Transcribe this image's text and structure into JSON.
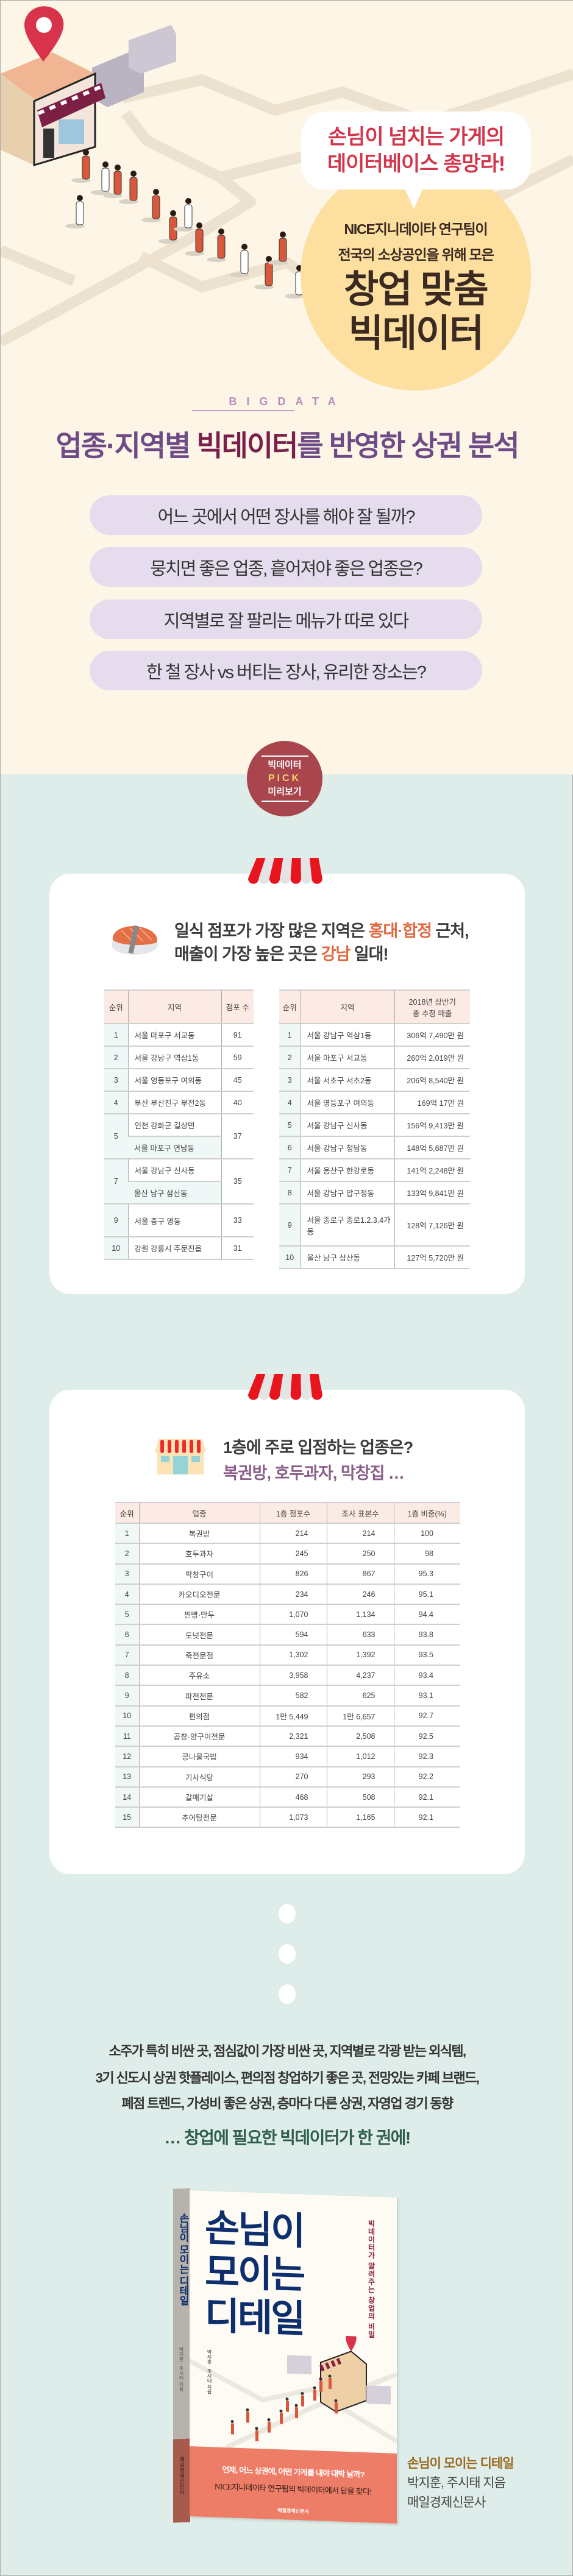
{
  "hero": {
    "bubble_lines": [
      "손님이 넘치는 가게의",
      "데이터베이스 총망라!"
    ],
    "circle_lines": [
      "NICE지니데이타 연구팀이",
      "전국의 소상공인을 위해 모은"
    ],
    "circle_big": [
      "창업 맞춤",
      "빅데이터"
    ],
    "accent_color": "#d3354a"
  },
  "intro": {
    "label": "BIGDATA",
    "title_pre": "업종·지역별 ",
    "title_hl": "빅데이터",
    "title_post": "를 반영한 상권 분석",
    "questions": [
      "어느 곳에서 어떤 장사를 해야 잘 될까?",
      "뭉치면 좋은 업종, 흩어져야 좋은 업종은?",
      "지역별로 잘 팔리는 메뉴가 따로 있다",
      "한 철 장사 vs 버티는 장사, 유리한 장소는?"
    ]
  },
  "badge": {
    "line1": "빅데이터",
    "line2": "PICK",
    "line3": "미리보기",
    "color": "#a8454d"
  },
  "card1": {
    "icon": "sushi-icon",
    "line1_pre": "일식 점포가 가장 많은 지역은 ",
    "line1_hl": "홍대·합정",
    "line1_post": " 근처,",
    "line2_pre": "매출이 가장 높은 곳은 ",
    "line2_hl": "강남",
    "line2_post": " 일대!",
    "left_table": {
      "headers": [
        "순위",
        "지역",
        "점포 수"
      ],
      "groups": [
        {
          "rank": "1",
          "regions": [
            "서울 마포구 서교동"
          ],
          "count": "91"
        },
        {
          "rank": "2",
          "regions": [
            "서울 강남구 역삼1동"
          ],
          "count": "59"
        },
        {
          "rank": "3",
          "regions": [
            "서울 영등포구 여의동"
          ],
          "count": "45"
        },
        {
          "rank": "4",
          "regions": [
            "부산 부산진구 부전2동"
          ],
          "count": "40"
        },
        {
          "rank": "5",
          "regions": [
            "인천 강화군 길상면",
            "서울 마포구 연남동"
          ],
          "count": "37"
        },
        {
          "rank": "7",
          "regions": [
            "서울 강남구 신사동",
            "울산 남구 삼산동"
          ],
          "count": "35"
        },
        {
          "rank": "9",
          "regions": [
            "서울 중구 명동"
          ],
          "count": "33",
          "tall": true
        },
        {
          "rank": "10",
          "regions": [
            "강원 강릉시 주문진읍"
          ],
          "count": "31"
        }
      ]
    },
    "right_table": {
      "headers": [
        "순위",
        "지역",
        "2018년 상반기\n총 추정 매출"
      ],
      "rows": [
        [
          "1",
          "서울 강남구 역삼1동",
          "306억 7,490만 원"
        ],
        [
          "2",
          "서울 마포구 서교동",
          "260억 2,019만 원"
        ],
        [
          "3",
          "서울 서초구 서초2동",
          "206억 8,540만 원"
        ],
        [
          "4",
          "서울 영등포구 여의동",
          "169억 17만 원"
        ],
        [
          "5",
          "서울 강남구 신사동",
          "156억 9,413만 원"
        ],
        [
          "6",
          "서울 강남구 청담동",
          "148억 5,687만 원"
        ],
        [
          "7",
          "서울 용산구 한강로동",
          "141억 2,248만 원"
        ],
        [
          "8",
          "서울 강남구 압구정동",
          "133억 9,841만 원"
        ],
        [
          "9",
          "서울 종로구 종로1.2.3.4가동",
          "128억 7,126만 원"
        ],
        [
          "10",
          "울산 남구 삼산동",
          "127억 5,720만 원"
        ]
      ]
    }
  },
  "card2": {
    "icon": "storefront-icon",
    "line1": "1층에 주로 입점하는 업종은?",
    "line2": "복권방, 호두과자, 막창집 …",
    "table": {
      "headers": [
        "순위",
        "업종",
        "1층 점포수",
        "조사 표본수",
        "1층 비중(%)"
      ],
      "rows": [
        [
          "1",
          "복권방",
          "214",
          "214",
          "100"
        ],
        [
          "2",
          "호두과자",
          "245",
          "250",
          "98"
        ],
        [
          "3",
          "막창구이",
          "826",
          "867",
          "95.3"
        ],
        [
          "4",
          "카오디오전문",
          "234",
          "246",
          "95.1"
        ],
        [
          "5",
          "찐빵·만두",
          "1,070",
          "1,134",
          "94.4"
        ],
        [
          "6",
          "도넛전문",
          "594",
          "633",
          "93.8"
        ],
        [
          "7",
          "죽전문점",
          "1,302",
          "1,392",
          "93.5"
        ],
        [
          "8",
          "주유소",
          "3,958",
          "4,237",
          "93.4"
        ],
        [
          "9",
          "파전전문",
          "582",
          "625",
          "93.1"
        ],
        [
          "10",
          "편의점",
          "1만 5,449",
          "1만 6,657",
          "92.7"
        ],
        [
          "11",
          "곱창·양구이전문",
          "2,321",
          "2,508",
          "92.5"
        ],
        [
          "12",
          "콩나물국밥",
          "934",
          "1,012",
          "92.3"
        ],
        [
          "13",
          "기사식당",
          "270",
          "293",
          "92.2"
        ],
        [
          "14",
          "갈매기살",
          "468",
          "508",
          "92.1"
        ],
        [
          "15",
          "추어탕전문",
          "1,073",
          "1,165",
          "92.1"
        ]
      ]
    }
  },
  "outro": {
    "lines": [
      "소주가 특히 비싼 곳, 점심값이 가장 비싼 곳, 지역별로 각광 받는 외식템,",
      "3기 신도시 상권 핫플레이스, 편의점 창업하기 좋은 곳, 전망있는 카페 브랜드,",
      "폐점 트렌드, 가성비 좋은 상권, 층마다 다른 상권, 자영업 경기 동향"
    ],
    "highlight": "… 창업에 필요한 빅데이터가 한 권에!"
  },
  "book": {
    "cover_title": [
      "손님이",
      "모이는",
      "디테일"
    ],
    "cover_subtitle": "빅데이터가 알려주는 창업의 비밀",
    "cover_authors": "박지훈 · 주시태 지음",
    "band_line1": "언제, 어느 상권에, 어떤 가게를 내야 대박 날까?",
    "band_line2": "NICE지니데이타 연구팀의 빅데이터에서 답을 찾다!",
    "band_publisher": "매일경제신문사",
    "spine_title": "손님이 모이는 디테일",
    "spine_authors": "박지훈 · 주시태 지음",
    "spine_publisher": "매일경제신문사",
    "caption_title": "손님이 모이는 디테일",
    "caption_authors": "박지훈, 주시태 지음",
    "caption_publisher": "매일경제신문사"
  }
}
